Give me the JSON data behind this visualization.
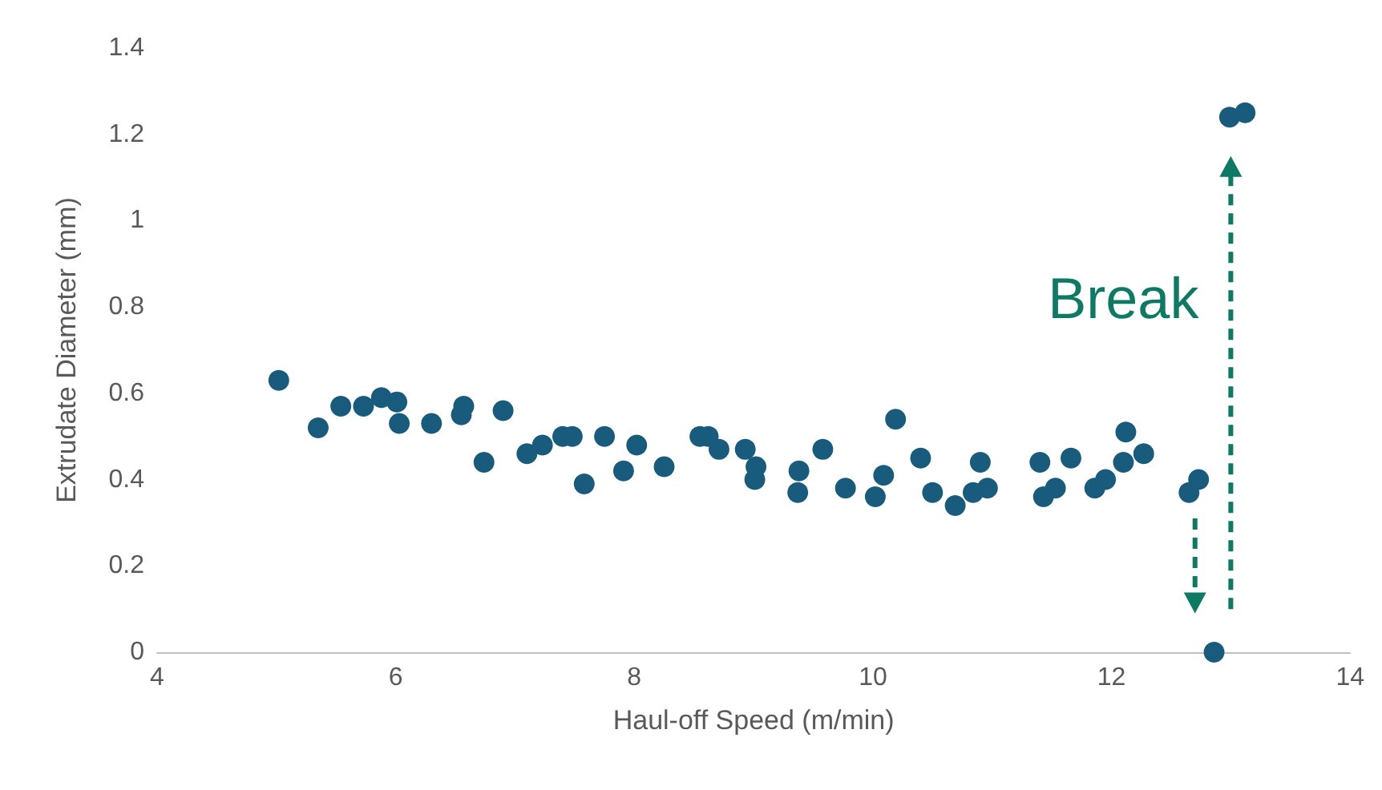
{
  "chart_data": {
    "type": "scatter",
    "xlabel": "Haul-off Speed (m/min)",
    "ylabel": "Extrudate Diameter (mm)",
    "x": [
      5.02,
      5.35,
      5.54,
      5.73,
      5.88,
      6.01,
      6.03,
      6.3,
      6.55,
      6.57,
      6.74,
      6.9,
      7.1,
      7.23,
      7.4,
      7.48,
      7.58,
      7.75,
      7.91,
      8.02,
      8.25,
      8.55,
      8.62,
      8.71,
      8.93,
      9.02,
      9.01,
      9.37,
      9.38,
      9.58,
      9.77,
      10.02,
      10.09,
      10.19,
      10.4,
      10.5,
      10.69,
      10.84,
      10.9,
      10.96,
      11.4,
      11.43,
      11.53,
      11.66,
      11.86,
      11.95,
      12.1,
      12.12,
      12.27,
      12.65,
      12.73,
      12.86,
      12.99,
      13.12
    ],
    "values": [
      0.63,
      0.52,
      0.57,
      0.57,
      0.59,
      0.58,
      0.53,
      0.53,
      0.55,
      0.57,
      0.44,
      0.56,
      0.46,
      0.48,
      0.5,
      0.5,
      0.39,
      0.5,
      0.42,
      0.48,
      0.43,
      0.5,
      0.5,
      0.47,
      0.47,
      0.43,
      0.4,
      0.37,
      0.42,
      0.47,
      0.38,
      0.36,
      0.41,
      0.54,
      0.45,
      0.37,
      0.34,
      0.37,
      0.44,
      0.38,
      0.44,
      0.36,
      0.38,
      0.45,
      0.38,
      0.4,
      0.44,
      0.51,
      0.46,
      0.37,
      0.4,
      0,
      1.24,
      1.25
    ],
    "color": "#185b7c",
    "marker": "circle",
    "xlim": [
      4,
      14
    ],
    "xticks": [
      4,
      6,
      8,
      10,
      12,
      14
    ],
    "ylim": [
      0,
      1.4
    ],
    "yticks": [
      0,
      0.2,
      0.4,
      0.6,
      0.8,
      1,
      1.2,
      1.4
    ],
    "annotations": [
      "Break"
    ]
  }
}
